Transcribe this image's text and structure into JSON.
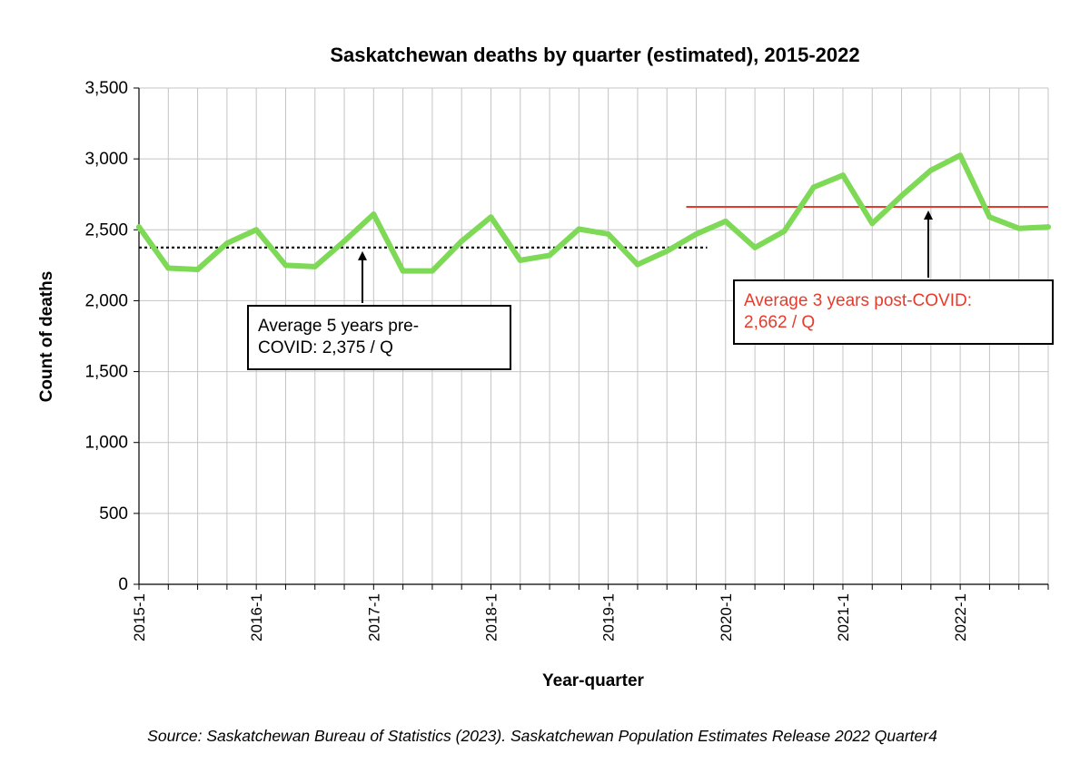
{
  "chart_data": {
    "type": "line",
    "title": "Saskatchewan deaths by quarter (estimated), 2015-2022",
    "xlabel": "Year-quarter",
    "ylabel": "Count of deaths",
    "ylim": [
      0,
      3500
    ],
    "y_ticks": [
      0,
      500,
      1000,
      1500,
      2000,
      2500,
      3000,
      3500
    ],
    "y_tick_labels": [
      "0",
      "500",
      "1,000",
      "1,500",
      "2,000",
      "2,500",
      "3,000",
      "3,500"
    ],
    "x_labels": [
      "2015-1",
      "2016-1",
      "2017-1",
      "2018-1",
      "2019-1",
      "2020-1",
      "2021-1",
      "2022-1"
    ],
    "categories": [
      "2015-1",
      "2015-2",
      "2015-3",
      "2015-4",
      "2016-1",
      "2016-2",
      "2016-3",
      "2016-4",
      "2017-1",
      "2017-2",
      "2017-3",
      "2017-4",
      "2018-1",
      "2018-2",
      "2018-3",
      "2018-4",
      "2019-1",
      "2019-2",
      "2019-3",
      "2019-4",
      "2020-1",
      "2020-2",
      "2020-3",
      "2020-4",
      "2021-1",
      "2021-2",
      "2021-3",
      "2021-4",
      "2022-1",
      "2022-2",
      "2022-3",
      "2022-4"
    ],
    "series": [
      {
        "color": "#7ed957",
        "values": [
          2520,
          2230,
          2220,
          2405,
          2500,
          2250,
          2240,
          2420,
          2610,
          2210,
          2210,
          2420,
          2590,
          2285,
          2320,
          2505,
          2470,
          2255,
          2350,
          2470,
          2560,
          2375,
          2490,
          2800,
          2885,
          2545,
          2740,
          2920,
          3025,
          2590,
          2510,
          2520
        ]
      }
    ],
    "grid": true,
    "reference_lines": [
      {
        "value": 2375,
        "from": "2015-1",
        "to": "2019-4",
        "style": "dotted",
        "color": "#000000",
        "annotation": [
          "Average 5 years pre-",
          "COVID: 2,375 / Q"
        ],
        "annotation_color": "#000000"
      },
      {
        "value": 2662,
        "from": "2019-4",
        "to": "2022-4",
        "style": "solid",
        "color": "#e83a2a",
        "annotation": [
          "Average 3 years post-COVID:",
          "2,662 / Q"
        ],
        "annotation_color": "#e83a2a"
      }
    ]
  },
  "source_note": "Source: Saskatchewan Bureau of Statistics (2023). Saskatchewan Population Estimates Release 2022 Quarter4"
}
